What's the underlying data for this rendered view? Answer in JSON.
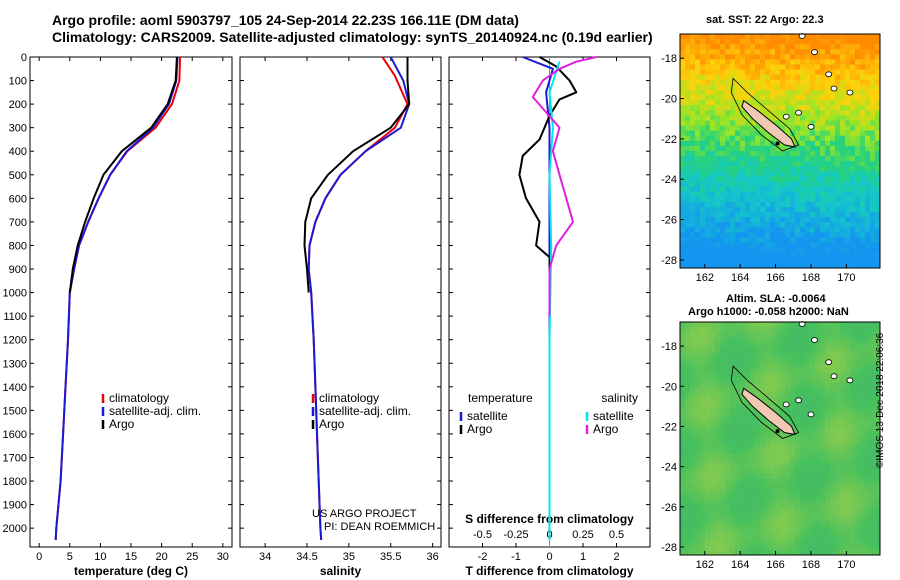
{
  "header": {
    "title_line1": "Argo profile: aoml 5903797_105 24-Sep-2014 22.23S 166.11E (DM data)",
    "title_line2": "Climatology: CARS2009. Satellite-adjusted climatology: synTS_20140924.nc (0.19d earlier)"
  },
  "colors": {
    "climatology": "#e8000b",
    "satellite": "#1a1ad6",
    "argo": "#000000",
    "satellite_salinity": "#00e5ee",
    "argo_salinity": "#e020e0",
    "island": "#f0c8b4"
  },
  "chart_data": [
    {
      "type": "line",
      "id": "temperature",
      "xlabel": "temperature (deg C)",
      "ylabel": "",
      "xlim": [
        -1.5,
        31.5
      ],
      "ylim": [
        0,
        2080
      ],
      "y_inverted": true,
      "xticks": [
        0,
        5,
        10,
        15,
        20,
        25,
        30
      ],
      "yticks": [
        0,
        100,
        200,
        300,
        400,
        500,
        600,
        700,
        800,
        900,
        1000,
        1100,
        1200,
        1300,
        1400,
        1500,
        1600,
        1700,
        1800,
        1900,
        2000
      ],
      "legend": [
        "climatology",
        "satellite-adj. clim.",
        "Argo"
      ],
      "series": [
        {
          "name": "climatology",
          "color": "#e8000b",
          "points": [
            [
              23.0,
              0
            ],
            [
              22.9,
              100
            ],
            [
              21.7,
              200
            ],
            [
              19.0,
              300
            ],
            [
              14.4,
              400
            ],
            [
              11.6,
              500
            ],
            [
              9.7,
              600
            ],
            [
              8.0,
              700
            ],
            [
              6.5,
              800
            ],
            [
              5.7,
              900
            ],
            [
              5.0,
              1000
            ],
            [
              4.7,
              1200
            ],
            [
              4.3,
              1400
            ],
            [
              3.9,
              1600
            ],
            [
              3.5,
              1800
            ],
            [
              2.8,
              2000
            ],
            [
              2.7,
              2050
            ]
          ]
        },
        {
          "name": "satellite-adj. clim.",
          "color": "#1a1ad6",
          "points": [
            [
              22.6,
              0
            ],
            [
              22.4,
              100
            ],
            [
              21.2,
              200
            ],
            [
              18.6,
              300
            ],
            [
              14.3,
              400
            ],
            [
              11.6,
              500
            ],
            [
              9.7,
              600
            ],
            [
              8.0,
              700
            ],
            [
              6.5,
              800
            ],
            [
              5.7,
              900
            ],
            [
              5.0,
              1000
            ],
            [
              4.7,
              1200
            ],
            [
              4.3,
              1400
            ],
            [
              3.9,
              1600
            ],
            [
              3.5,
              1800
            ],
            [
              2.8,
              2000
            ],
            [
              2.7,
              2050
            ]
          ]
        },
        {
          "name": "Argo",
          "color": "#000000",
          "points": [
            [
              22.5,
              0
            ],
            [
              22.3,
              100
            ],
            [
              21.0,
              200
            ],
            [
              18.3,
              300
            ],
            [
              13.5,
              400
            ],
            [
              10.5,
              500
            ],
            [
              8.9,
              600
            ],
            [
              7.5,
              700
            ],
            [
              6.3,
              800
            ],
            [
              5.5,
              900
            ],
            [
              5.0,
              1000
            ]
          ]
        }
      ]
    },
    {
      "type": "line",
      "id": "salinity",
      "xlabel": "salinity",
      "ylabel": "",
      "xlim": [
        33.7,
        36.1
      ],
      "ylim": [
        0,
        2080
      ],
      "y_inverted": true,
      "xticks": [
        34,
        34.5,
        35,
        35.5,
        36
      ],
      "legend": [
        "climatology",
        "satellite-adj. clim.",
        "Argo"
      ],
      "annotations": [
        "US ARGO PROJECT",
        "PI: DEAN ROEMMICH"
      ],
      "series": [
        {
          "name": "climatology",
          "color": "#e8000b",
          "points": [
            [
              35.4,
              0
            ],
            [
              35.55,
              80
            ],
            [
              35.7,
              200
            ],
            [
              35.55,
              300
            ],
            [
              35.2,
              400
            ],
            [
              34.9,
              500
            ],
            [
              34.72,
              600
            ],
            [
              34.6,
              700
            ],
            [
              34.53,
              800
            ],
            [
              34.52,
              900
            ],
            [
              34.55,
              1000
            ],
            [
              34.58,
              1200
            ],
            [
              34.6,
              1400
            ],
            [
              34.62,
              1600
            ],
            [
              34.64,
              1800
            ],
            [
              34.66,
              2000
            ],
            [
              34.67,
              2050
            ]
          ]
        },
        {
          "name": "satellite-adj. clim.",
          "color": "#1a1ad6",
          "points": [
            [
              35.5,
              0
            ],
            [
              35.65,
              100
            ],
            [
              35.72,
              200
            ],
            [
              35.62,
              300
            ],
            [
              35.2,
              400
            ],
            [
              34.9,
              500
            ],
            [
              34.72,
              600
            ],
            [
              34.6,
              700
            ],
            [
              34.53,
              800
            ],
            [
              34.52,
              900
            ],
            [
              34.55,
              1000
            ],
            [
              34.58,
              1200
            ],
            [
              34.6,
              1400
            ],
            [
              34.62,
              1600
            ],
            [
              34.64,
              1800
            ],
            [
              34.66,
              2000
            ],
            [
              34.67,
              2050
            ]
          ]
        },
        {
          "name": "Argo",
          "color": "#000000",
          "points": [
            [
              35.7,
              0
            ],
            [
              35.7,
              100
            ],
            [
              35.72,
              200
            ],
            [
              35.5,
              300
            ],
            [
              35.05,
              400
            ],
            [
              34.75,
              500
            ],
            [
              34.55,
              600
            ],
            [
              34.48,
              700
            ],
            [
              34.47,
              800
            ],
            [
              34.5,
              900
            ],
            [
              34.52,
              1000
            ]
          ]
        }
      ]
    },
    {
      "type": "line",
      "id": "difference",
      "xlabel": "T difference from climatology",
      "xlabel_top": "S difference from climatology",
      "xlim": [
        -3,
        3
      ],
      "ylim": [
        0,
        2080
      ],
      "y_inverted": true,
      "xticks": [
        -2,
        -1,
        0,
        1,
        2
      ],
      "xtick_labels": [
        "-2",
        "-1",
        "0",
        "1",
        "2"
      ],
      "xticks_top": [
        -2,
        -1,
        0,
        1,
        2
      ],
      "xtick_labels_top": [
        "-0.5",
        "-0.25",
        "0",
        "0.25",
        "0.5"
      ],
      "legend_left": {
        "title": "temperature",
        "items": [
          "satellite",
          "Argo"
        ]
      },
      "legend_right": {
        "title": "salinity",
        "items": [
          "satellite",
          "Argo"
        ]
      },
      "series": [
        {
          "name": "temperature satellite",
          "color": "#1a1ad6",
          "points": [
            [
              -0.8,
              0
            ],
            [
              0.1,
              50
            ],
            [
              -0.1,
              150
            ],
            [
              0.0,
              300
            ],
            [
              0.0,
              500
            ],
            [
              0.0,
              800
            ],
            [
              0.0,
              1200
            ]
          ]
        },
        {
          "name": "temperature Argo",
          "color": "#000000",
          "points": [
            [
              -0.3,
              0
            ],
            [
              0.2,
              40
            ],
            [
              0.6,
              100
            ],
            [
              0.8,
              150
            ],
            [
              0.3,
              180
            ],
            [
              0.0,
              250
            ],
            [
              -0.3,
              350
            ],
            [
              -0.8,
              420
            ],
            [
              -0.9,
              500
            ],
            [
              -0.7,
              600
            ],
            [
              -0.3,
              700
            ],
            [
              -0.4,
              800
            ],
            [
              0.0,
              850
            ],
            [
              0.0,
              1000
            ]
          ]
        },
        {
          "name": "salinity satellite",
          "color": "#00e5ee",
          "points": [
            [
              0.3,
              20
            ],
            [
              0.0,
              150
            ],
            [
              0.1,
              300
            ],
            [
              0.0,
              500
            ],
            [
              0.05,
              800
            ],
            [
              0.0,
              1200
            ],
            [
              0.0,
              1600
            ],
            [
              0.0,
              2050
            ]
          ]
        },
        {
          "name": "salinity Argo",
          "color": "#e020e0",
          "points": [
            [
              1.4,
              0
            ],
            [
              0.8,
              20
            ],
            [
              0.3,
              50
            ],
            [
              -0.2,
              100
            ],
            [
              -0.5,
              170
            ],
            [
              0.3,
              300
            ],
            [
              0.1,
              400
            ],
            [
              0.3,
              500
            ],
            [
              0.5,
              600
            ],
            [
              0.7,
              700
            ],
            [
              0.2,
              800
            ],
            [
              0.0,
              900
            ],
            [
              0.0,
              1100
            ]
          ]
        }
      ]
    },
    {
      "type": "heatmap",
      "id": "sst-map",
      "title": "sat. SST: 22 Argo: 22.3",
      "xlim": [
        160.6,
        171.9
      ],
      "ylim": [
        -28.4,
        -16.8
      ],
      "xticks": [
        162,
        164,
        166,
        168,
        170
      ],
      "yticks": [
        -18,
        -20,
        -22,
        -24,
        -26,
        -28
      ]
    },
    {
      "type": "heatmap",
      "id": "sla-map",
      "title_line1": "Altim. SLA: -0.0064",
      "title_line2": "Argo h1000: -0.058 h2000: NaN",
      "xlim": [
        160.6,
        171.9
      ],
      "ylim": [
        -28.4,
        -16.8
      ],
      "xticks": [
        162,
        164,
        166,
        168,
        170
      ],
      "yticks": [
        -18,
        -20,
        -22,
        -24,
        -26,
        -28
      ]
    }
  ],
  "credit": "©IMOS 13-Dec-2018 22:06:36"
}
